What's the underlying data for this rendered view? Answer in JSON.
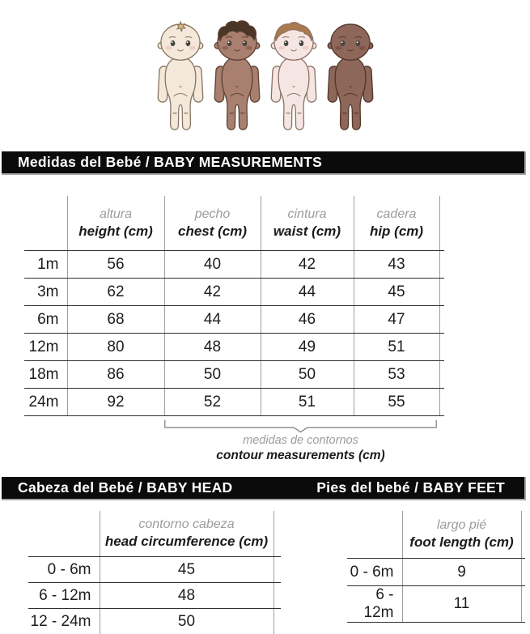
{
  "colors": {
    "bar_background": "#0b0b0b",
    "bar_text": "#ffffff",
    "grid_vertical_line": "#9e9e9e",
    "grid_horizontal_line": "#2f2f2f",
    "label_gray": "#9c9c9c",
    "text_dark": "#1d1d1d",
    "bracket_line": "#8f8f8f"
  },
  "babies": [
    {
      "name": "baby-light-cream",
      "skin": "#f3e8d9",
      "outline": "#8a7663",
      "cheek": "#f1c9bf",
      "hair": "tuft",
      "hair_color": "#d9bf6e"
    },
    {
      "name": "baby-medium-brown",
      "skin": "#a97f6f",
      "outline": "#5d4334",
      "cheek": "#8f5f50",
      "hair": "curly",
      "hair_color": "#4a3526"
    },
    {
      "name": "baby-light-pink",
      "skin": "#f6e6e3",
      "outline": "#8c7265",
      "cheek": "#f2c9c6",
      "hair": "cap",
      "hair_color": "#a9794f"
    },
    {
      "name": "baby-dark-brown",
      "skin": "#8d6759",
      "outline": "#52362a",
      "cheek": "#7a4f43",
      "hair": "bald",
      "hair_color": "#6d4b3b"
    }
  ],
  "measurements": {
    "title": "Medidas del Bebé / BABY MEASUREMENTS",
    "columns": [
      {
        "es": "altura",
        "en": "height (cm)"
      },
      {
        "es": "pecho",
        "en": "chest (cm)"
      },
      {
        "es": "cintura",
        "en": "waist (cm)"
      },
      {
        "es": "cadera",
        "en": "hip (cm)"
      }
    ],
    "rows": [
      {
        "label": "1m",
        "values": [
          56,
          40,
          42,
          43
        ]
      },
      {
        "label": "3m",
        "values": [
          62,
          42,
          44,
          45
        ]
      },
      {
        "label": "6m",
        "values": [
          68,
          44,
          46,
          47
        ]
      },
      {
        "label": "12m",
        "values": [
          80,
          48,
          49,
          51
        ]
      },
      {
        "label": "18m",
        "values": [
          86,
          50,
          50,
          53
        ]
      },
      {
        "label": "24m",
        "values": [
          92,
          52,
          51,
          55
        ]
      }
    ],
    "note_es": "medidas de contornos",
    "note_en": "contour measurements (cm)"
  },
  "head": {
    "title": "Cabeza del Bebé / BABY HEAD",
    "column": {
      "es": "contorno cabeza",
      "en": "head circumference (cm)"
    },
    "rows": [
      {
        "label": "0 - 6m",
        "value": 45
      },
      {
        "label": "6 - 12m",
        "value": 48
      },
      {
        "label": "12 - 24m",
        "value": 50
      }
    ]
  },
  "feet": {
    "title": "Pies del bebé / BABY FEET",
    "column": {
      "es": "largo pié",
      "en": "foot length (cm)"
    },
    "rows": [
      {
        "label": "0 - 6m",
        "value": 9
      },
      {
        "label": "6 - 12m",
        "value": 11
      }
    ]
  }
}
